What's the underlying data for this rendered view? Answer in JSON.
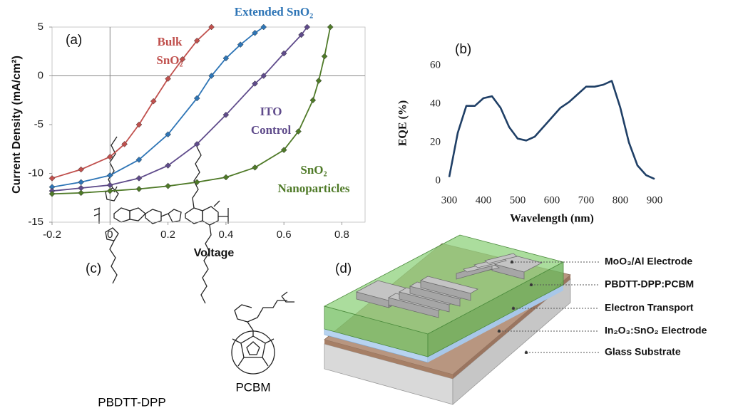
{
  "chart_data": [
    {
      "type": "line",
      "panel_label": "(a)",
      "x_label": "Voltage",
      "y_label": "Current Density (mA/cm²)",
      "xlim": [
        -0.2,
        0.88
      ],
      "xticks": [
        -0.2,
        0,
        0.2,
        0.4,
        0.6,
        0.8
      ],
      "ylim": [
        -15,
        5
      ],
      "yticks": [
        -15,
        -10,
        -5,
        0,
        5
      ],
      "zero_lines": true,
      "markers": "diamond",
      "series": [
        {
          "name": "Bulk SnO₂",
          "color": "#c0504d",
          "x": [
            -0.2,
            -0.1,
            0,
            0.05,
            0.1,
            0.15,
            0.2,
            0.25,
            0.3,
            0.35
          ],
          "values": [
            -10.5,
            -9.6,
            -8.3,
            -7.0,
            -5.0,
            -2.6,
            -0.3,
            1.7,
            3.6,
            5
          ]
        },
        {
          "name": "Extended SnO₂",
          "color": "#2e75b6",
          "x": [
            -0.2,
            -0.1,
            0,
            0.1,
            0.2,
            0.3,
            0.35,
            0.4,
            0.45,
            0.5,
            0.53
          ],
          "values": [
            -11.4,
            -10.9,
            -10.2,
            -8.6,
            -6.0,
            -2.3,
            0,
            1.8,
            3.2,
            4.4,
            5
          ]
        },
        {
          "name": "ITO Control",
          "color": "#5f4b8b",
          "x": [
            -0.2,
            -0.1,
            0,
            0.1,
            0.2,
            0.3,
            0.4,
            0.5,
            0.53,
            0.6,
            0.66,
            0.68
          ],
          "values": [
            -11.8,
            -11.5,
            -11.2,
            -10.5,
            -9.2,
            -7.0,
            -4.0,
            -0.8,
            0,
            2.3,
            4.2,
            5
          ]
        },
        {
          "name": "SnO₂ Nanoparticles",
          "color": "#4f7a28",
          "x": [
            -0.2,
            -0.1,
            0,
            0.1,
            0.2,
            0.3,
            0.4,
            0.5,
            0.6,
            0.65,
            0.7,
            0.72,
            0.74,
            0.76
          ],
          "values": [
            -12.1,
            -12.0,
            -11.8,
            -11.6,
            -11.3,
            -10.9,
            -10.4,
            -9.4,
            -7.6,
            -5.7,
            -2.5,
            -0.5,
            2,
            5
          ]
        }
      ]
    },
    {
      "type": "line",
      "panel_label": "(b)",
      "x_label": "Wavelength (nm)",
      "y_label": "EQE (%)",
      "xlim": [
        300,
        900
      ],
      "xticks": [
        300,
        400,
        500,
        600,
        700,
        800,
        900
      ],
      "ylim": [
        0,
        60
      ],
      "yticks": [
        0,
        20,
        40,
        60
      ],
      "series": [
        {
          "name": null,
          "color": "#1f3f66",
          "x": [
            300,
            325,
            350,
            375,
            400,
            425,
            450,
            475,
            500,
            525,
            550,
            575,
            600,
            625,
            650,
            675,
            700,
            725,
            750,
            775,
            800,
            825,
            850,
            875,
            900
          ],
          "values": [
            2,
            25,
            39,
            39,
            43,
            44,
            38,
            28,
            22,
            21,
            23,
            28,
            33,
            38,
            41,
            45,
            49,
            49,
            50,
            52,
            38,
            20,
            8,
            3,
            1
          ]
        }
      ]
    }
  ],
  "structures": {
    "panel_label": "(c)",
    "polymer": "PBDTT-DPP",
    "fullerene": "PCBM"
  },
  "device": {
    "panel_label": "(d)",
    "layers": [
      "MoO₃/Al Electrode",
      "PBDTT-DPP:PCBM",
      "Electron Transport",
      "In₂O₃:SnO₂ Electrode",
      "Glass Substrate"
    ]
  }
}
